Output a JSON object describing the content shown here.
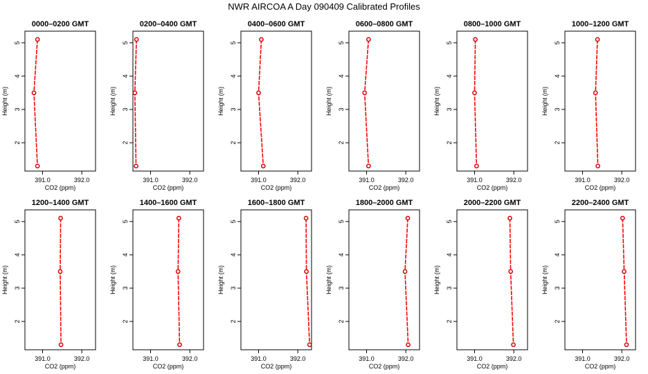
{
  "title": "NWR AIRCOA A  Day 090409  Calibrated Profiles",
  "colors": {
    "line": "#ff0000",
    "marker": "#cc0000",
    "axis": "#000000"
  },
  "chart_data": [
    {
      "type": "line",
      "title": "0000–0200 GMT",
      "xlabel": "CO2 (ppm)",
      "ylabel": "Height (m)",
      "xlim": [
        390.55,
        392.35
      ],
      "ylim": [
        1.15,
        5.35
      ],
      "xticks": [
        391.0,
        392.0
      ],
      "xtick_labels": [
        "391.0",
        "392.0"
      ],
      "yticks": [
        2,
        3,
        4,
        5
      ],
      "ytick_labels": [
        "2",
        "3",
        "4",
        "5"
      ],
      "grid": false,
      "series": [
        {
          "x": [
            390.87,
            390.78,
            390.87
          ],
          "y": [
            5.1,
            3.5,
            1.3
          ]
        }
      ]
    },
    {
      "type": "line",
      "title": "0200–0400 GMT",
      "xlabel": "CO2 (ppm)",
      "ylabel": "Height (m)",
      "xlim": [
        390.55,
        392.35
      ],
      "ylim": [
        1.15,
        5.35
      ],
      "xticks": [
        391.0,
        392.0
      ],
      "xtick_labels": [
        "391.0",
        "392.0"
      ],
      "yticks": [
        2,
        3,
        4,
        5
      ],
      "ytick_labels": [
        "2",
        "3",
        "4",
        "5"
      ],
      "grid": false,
      "series": [
        {
          "x": [
            390.64,
            390.6,
            390.63
          ],
          "y": [
            5.1,
            3.5,
            1.3
          ]
        }
      ]
    },
    {
      "type": "line",
      "title": "0400–0600 GMT",
      "xlabel": "CO2 (ppm)",
      "ylabel": "Height (m)",
      "xlim": [
        390.55,
        392.35
      ],
      "ylim": [
        1.15,
        5.35
      ],
      "xticks": [
        391.0,
        392.0
      ],
      "xtick_labels": [
        "391.0",
        "392.0"
      ],
      "yticks": [
        2,
        3,
        4,
        5
      ],
      "ytick_labels": [
        "2",
        "3",
        "4",
        "5"
      ],
      "grid": false,
      "series": [
        {
          "x": [
            391.07,
            391.0,
            391.12
          ],
          "y": [
            5.1,
            3.5,
            1.3
          ]
        }
      ]
    },
    {
      "type": "line",
      "title": "0600–0800 GMT",
      "xlabel": "CO2 (ppm)",
      "ylabel": "Height (m)",
      "xlim": [
        390.55,
        392.35
      ],
      "ylim": [
        1.15,
        5.35
      ],
      "xticks": [
        391.0,
        392.0
      ],
      "xtick_labels": [
        "391.0",
        "392.0"
      ],
      "yticks": [
        2,
        3,
        4,
        5
      ],
      "ytick_labels": [
        "2",
        "3",
        "4",
        "5"
      ],
      "grid": false,
      "series": [
        {
          "x": [
            391.05,
            390.95,
            391.05
          ],
          "y": [
            5.1,
            3.5,
            1.3
          ]
        }
      ]
    },
    {
      "type": "line",
      "title": "0800–1000 GMT",
      "xlabel": "CO2 (ppm)",
      "ylabel": "Height (m)",
      "xlim": [
        390.55,
        392.35
      ],
      "ylim": [
        1.15,
        5.35
      ],
      "xticks": [
        391.0,
        392.0
      ],
      "xtick_labels": [
        "391.0",
        "392.0"
      ],
      "yticks": [
        2,
        3,
        4,
        5
      ],
      "ytick_labels": [
        "2",
        "3",
        "4",
        "5"
      ],
      "grid": false,
      "series": [
        {
          "x": [
            391.02,
            391.0,
            391.05
          ],
          "y": [
            5.1,
            3.5,
            1.3
          ]
        }
      ]
    },
    {
      "type": "line",
      "title": "1000–1200 GMT",
      "xlabel": "CO2 (ppm)",
      "ylabel": "Height (m)",
      "xlim": [
        390.55,
        392.35
      ],
      "ylim": [
        1.15,
        5.35
      ],
      "xticks": [
        391.0,
        392.0
      ],
      "xtick_labels": [
        "391.0",
        "392.0"
      ],
      "yticks": [
        2,
        3,
        4,
        5
      ],
      "ytick_labels": [
        "2",
        "3",
        "4",
        "5"
      ],
      "grid": false,
      "series": [
        {
          "x": [
            391.38,
            391.33,
            391.39
          ],
          "y": [
            5.1,
            3.5,
            1.3
          ]
        }
      ]
    },
    {
      "type": "line",
      "title": "1200–1400 GMT",
      "xlabel": "CO2 (ppm)",
      "ylabel": "Height (m)",
      "xlim": [
        390.55,
        392.35
      ],
      "ylim": [
        1.15,
        5.35
      ],
      "xticks": [
        391.0,
        392.0
      ],
      "xtick_labels": [
        "391.0",
        "392.0"
      ],
      "yticks": [
        2,
        3,
        4,
        5
      ],
      "ytick_labels": [
        "2",
        "3",
        "4",
        "5"
      ],
      "grid": false,
      "series": [
        {
          "x": [
            391.46,
            391.45,
            391.47
          ],
          "y": [
            5.1,
            3.5,
            1.3
          ]
        }
      ]
    },
    {
      "type": "line",
      "title": "1400–1600 GMT",
      "xlabel": "CO2 (ppm)",
      "ylabel": "Height (m)",
      "xlim": [
        390.55,
        392.35
      ],
      "ylim": [
        1.15,
        5.35
      ],
      "xticks": [
        391.0,
        392.0
      ],
      "xtick_labels": [
        "391.0",
        "392.0"
      ],
      "yticks": [
        2,
        3,
        4,
        5
      ],
      "ytick_labels": [
        "2",
        "3",
        "4",
        "5"
      ],
      "grid": false,
      "series": [
        {
          "x": [
            391.72,
            391.7,
            391.74
          ],
          "y": [
            5.1,
            3.5,
            1.3
          ]
        }
      ]
    },
    {
      "type": "line",
      "title": "1600–1800 GMT",
      "xlabel": "CO2 (ppm)",
      "ylabel": "Height (m)",
      "xlim": [
        390.55,
        392.35
      ],
      "ylim": [
        1.15,
        5.35
      ],
      "xticks": [
        391.0,
        392.0
      ],
      "xtick_labels": [
        "391.0",
        "392.0"
      ],
      "yticks": [
        2,
        3,
        4,
        5
      ],
      "ytick_labels": [
        "2",
        "3",
        "4",
        "5"
      ],
      "grid": false,
      "series": [
        {
          "x": [
            392.21,
            392.22,
            392.3
          ],
          "y": [
            5.1,
            3.5,
            1.3
          ]
        }
      ]
    },
    {
      "type": "line",
      "title": "1800–2000 GMT",
      "xlabel": "CO2 (ppm)",
      "ylabel": "Height (m)",
      "xlim": [
        390.55,
        392.35
      ],
      "ylim": [
        1.15,
        5.35
      ],
      "xticks": [
        391.0,
        392.0
      ],
      "xtick_labels": [
        "391.0",
        "392.0"
      ],
      "yticks": [
        2,
        3,
        4,
        5
      ],
      "ytick_labels": [
        "2",
        "3",
        "4",
        "5"
      ],
      "grid": false,
      "series": [
        {
          "x": [
            392.05,
            391.98,
            392.06
          ],
          "y": [
            5.1,
            3.5,
            1.3
          ]
        }
      ]
    },
    {
      "type": "line",
      "title": "2000–2200 GMT",
      "xlabel": "CO2 (ppm)",
      "ylabel": "Height (m)",
      "xlim": [
        390.55,
        392.35
      ],
      "ylim": [
        1.15,
        5.35
      ],
      "xticks": [
        391.0,
        392.0
      ],
      "xtick_labels": [
        "391.0",
        "392.0"
      ],
      "yticks": [
        2,
        3,
        4,
        5
      ],
      "ytick_labels": [
        "2",
        "3",
        "4",
        "5"
      ],
      "grid": false,
      "series": [
        {
          "x": [
            391.9,
            391.92,
            391.99
          ],
          "y": [
            5.1,
            3.5,
            1.3
          ]
        }
      ]
    },
    {
      "type": "line",
      "title": "2200–2400 GMT",
      "xlabel": "CO2 (ppm)",
      "ylabel": "Height (m)",
      "xlim": [
        390.55,
        392.35
      ],
      "ylim": [
        1.15,
        5.35
      ],
      "xticks": [
        391.0,
        392.0
      ],
      "xtick_labels": [
        "391.0",
        "392.0"
      ],
      "yticks": [
        2,
        3,
        4,
        5
      ],
      "ytick_labels": [
        "2",
        "3",
        "4",
        "5"
      ],
      "grid": false,
      "series": [
        {
          "x": [
            392.02,
            392.06,
            392.12
          ],
          "y": [
            5.1,
            3.5,
            1.3
          ]
        }
      ]
    }
  ]
}
